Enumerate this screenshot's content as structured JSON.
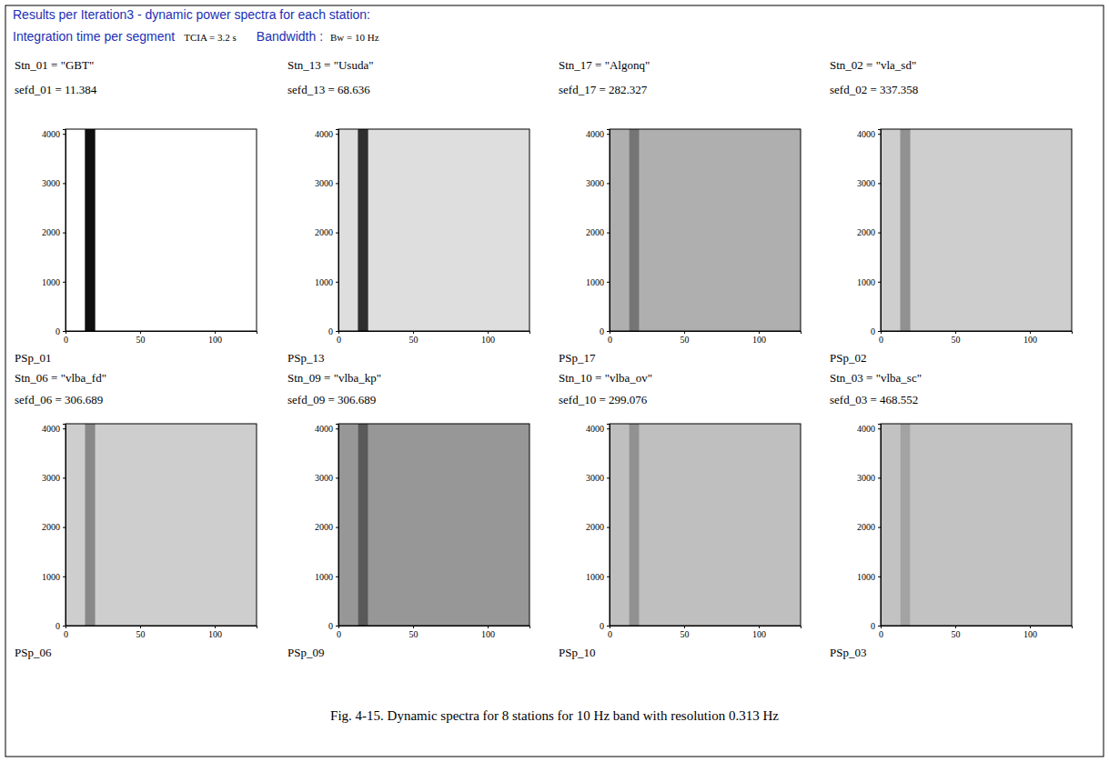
{
  "header": {
    "title": "Results per Iteration3 - dynamic power spectra for each station:",
    "integration_label": "Integration time per segment",
    "integration_value": "TCIA = 3.2 s",
    "bandwidth_label": "Bandwidth :",
    "bandwidth_value": "Bw = 10 Hz"
  },
  "chart_data": [
    {
      "type": "heatmap",
      "title": "Stn_01 = \"GBT\"",
      "subtitle": "sefd_01 = 11.384",
      "xlabel": "PSp_01",
      "xlim": [
        0,
        128
      ],
      "ylim": [
        0,
        4096
      ],
      "xticks": [
        0,
        50,
        100
      ],
      "yticks": [
        0,
        1000,
        2000,
        3000,
        4000
      ],
      "x_bins": [
        0,
        13,
        20,
        128
      ],
      "density": [
        0,
        0.95,
        0
      ]
    },
    {
      "type": "heatmap",
      "title": "Stn_13 = \"Usuda\"",
      "subtitle": "sefd_13 = 68.636",
      "xlabel": "PSp_13",
      "xlim": [
        0,
        128
      ],
      "ylim": [
        0,
        4096
      ],
      "xticks": [
        0,
        50,
        100
      ],
      "yticks": [
        0,
        1000,
        2000,
        3000,
        4000
      ],
      "x_bins": [
        0,
        13,
        20,
        128
      ],
      "density": [
        0.22,
        0.85,
        0.22
      ]
    },
    {
      "type": "heatmap",
      "title": "Stn_17 = \"Algonq\"",
      "subtitle": "sefd_17 = 282.327",
      "xlabel": "PSp_17",
      "xlim": [
        0,
        128
      ],
      "ylim": [
        0,
        4096
      ],
      "xticks": [
        0,
        50,
        100
      ],
      "yticks": [
        0,
        1000,
        2000,
        3000,
        4000
      ],
      "x_bins": [
        0,
        13,
        20,
        128
      ],
      "density": [
        0.42,
        0.62,
        0.42
      ]
    },
    {
      "type": "heatmap",
      "title": "Stn_02 = \"vla_sd\"",
      "subtitle": "sefd_02 = 337.358",
      "xlabel": "PSp_02",
      "xlim": [
        0,
        128
      ],
      "ylim": [
        0,
        4096
      ],
      "xticks": [
        0,
        50,
        100
      ],
      "yticks": [
        0,
        1000,
        2000,
        3000,
        4000
      ],
      "x_bins": [
        0,
        13,
        20,
        128
      ],
      "density": [
        0.3,
        0.52,
        0.3
      ]
    },
    {
      "type": "heatmap",
      "title": "Stn_06 = \"vlba_fd\"",
      "subtitle": "sefd_06 = 306.689",
      "xlabel": "PSp_06",
      "xlim": [
        0,
        128
      ],
      "ylim": [
        0,
        4096
      ],
      "xticks": [
        0,
        50,
        100
      ],
      "yticks": [
        0,
        1000,
        2000,
        3000,
        4000
      ],
      "x_bins": [
        0,
        13,
        20,
        128
      ],
      "density": [
        0.3,
        0.55,
        0.3
      ]
    },
    {
      "type": "heatmap",
      "title": "Stn_09 = \"vlba_kp\"",
      "subtitle": "sefd_09 = 306.689",
      "xlabel": "PSp_09",
      "xlim": [
        0,
        128
      ],
      "ylim": [
        0,
        4096
      ],
      "xticks": [
        0,
        50,
        100
      ],
      "yticks": [
        0,
        1000,
        2000,
        3000,
        4000
      ],
      "x_bins": [
        0,
        13,
        20,
        128
      ],
      "density": [
        0.5,
        0.72,
        0.5
      ]
    },
    {
      "type": "heatmap",
      "title": "Stn_10 = \"vlba_ov\"",
      "subtitle": "sefd_10 = 299.076",
      "xlabel": "PSp_10",
      "xlim": [
        0,
        128
      ],
      "ylim": [
        0,
        4096
      ],
      "xticks": [
        0,
        50,
        100
      ],
      "yticks": [
        0,
        1000,
        2000,
        3000,
        4000
      ],
      "x_bins": [
        0,
        13,
        20,
        128
      ],
      "density": [
        0.36,
        0.52,
        0.36
      ]
    },
    {
      "type": "heatmap",
      "title": "Stn_03 = \"vlba_sc\"",
      "subtitle": "sefd_03 = 468.552",
      "xlabel": "PSp_03",
      "xlim": [
        0,
        128
      ],
      "ylim": [
        0,
        4096
      ],
      "xticks": [
        0,
        50,
        100
      ],
      "yticks": [
        0,
        1000,
        2000,
        3000,
        4000
      ],
      "x_bins": [
        0,
        13,
        20,
        128
      ],
      "density": [
        0.35,
        0.46,
        0.35
      ]
    }
  ],
  "caption": "Fig. 4-15. Dynamic spectra for 8 stations for 10 Hz band with resolution 0.313 Hz"
}
